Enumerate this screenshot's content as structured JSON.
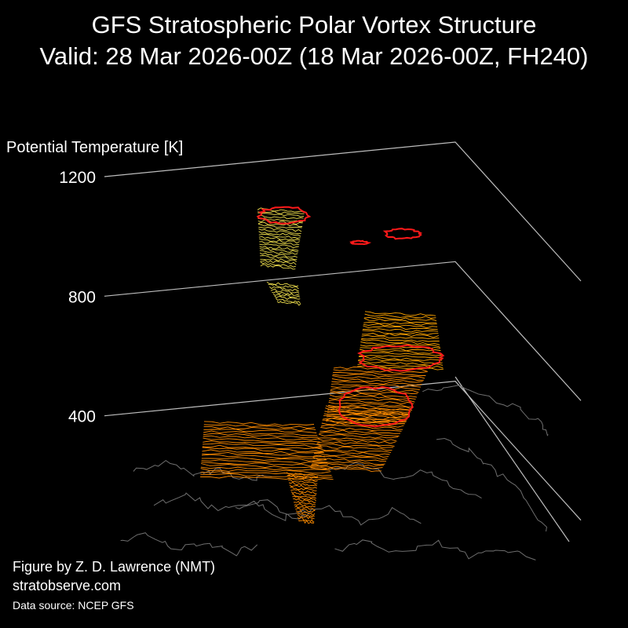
{
  "chart_data": {
    "type": "3d-isosurface",
    "title": "GFS Stratospheric Polar Vortex Structure",
    "subtitle": "Valid: 28 Mar 2026-00Z  (18 Mar 2026-00Z, FH240)",
    "zlabel": "Potential Temperature [K]",
    "z_ticks": [
      400,
      800,
      1200
    ],
    "zlim": [
      0,
      1250
    ],
    "colors": {
      "background": "#000000",
      "axis": "#bdbdbd",
      "coast": "#6e6e6e",
      "upper_slices": "#e8d84a",
      "lower_slices": "#ff8c00",
      "mid_slices": "#ffa500",
      "edge_contour": "#ff1a1a"
    }
  },
  "credits": {
    "author": "Figure by Z. D. Lawrence (NMT)",
    "website": "stratobserve.com",
    "source": "Data source: NCEP GFS"
  }
}
